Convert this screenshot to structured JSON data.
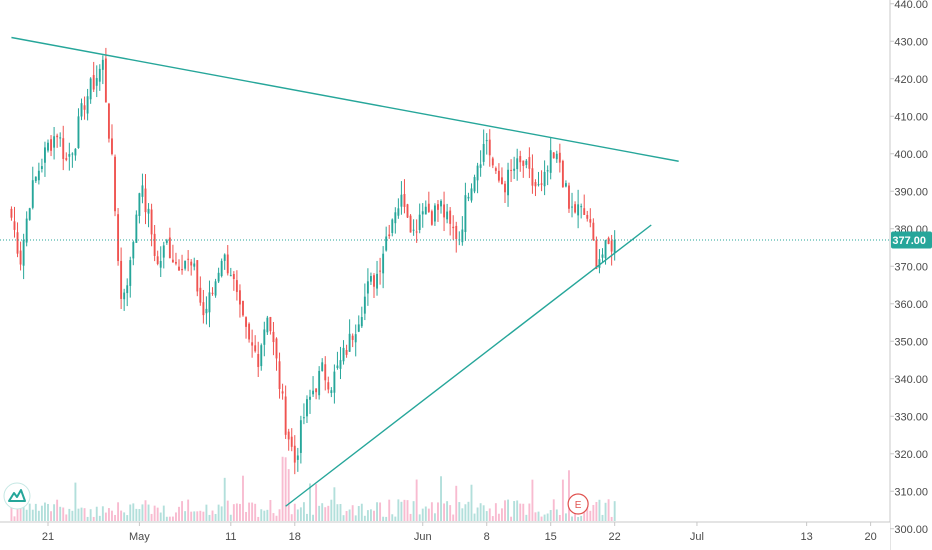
{
  "chart_data": {
    "type": "candlestick",
    "y_axis": {
      "min": 300,
      "max": 441,
      "ticks": [
        {
          "value": 440,
          "label": "440.00"
        },
        {
          "value": 430,
          "label": "430.00"
        },
        {
          "value": 420,
          "label": "420.00"
        },
        {
          "value": 410,
          "label": "410.00"
        },
        {
          "value": 400,
          "label": "400.00"
        },
        {
          "value": 390,
          "label": "390.00"
        },
        {
          "value": 380,
          "label": "380.00"
        },
        {
          "value": 370,
          "label": "370.00"
        },
        {
          "value": 360,
          "label": "360.00"
        },
        {
          "value": 350,
          "label": "350.00"
        },
        {
          "value": 340,
          "label": "340.00"
        },
        {
          "value": 330,
          "label": "330.00"
        },
        {
          "value": 320,
          "label": "320.00"
        },
        {
          "value": 310,
          "label": "310.00"
        },
        {
          "value": 300,
          "label": "300.00"
        }
      ]
    },
    "x_axis": {
      "ticks": [
        {
          "day": 0,
          "label": "21"
        },
        {
          "day": 10,
          "label": "May"
        },
        {
          "day": 20,
          "label": "11"
        },
        {
          "day": 27,
          "label": "18"
        },
        {
          "day": 41,
          "label": "Jun"
        },
        {
          "day": 48,
          "label": "8"
        },
        {
          "day": 55,
          "label": "15"
        },
        {
          "day": 62,
          "label": "22"
        },
        {
          "day": 71,
          "label": "Jul"
        },
        {
          "day": 83,
          "label": "13"
        },
        {
          "day": 90,
          "label": "20"
        }
      ]
    },
    "last_price": {
      "value": 377,
      "label": "377.00"
    },
    "path_points": [
      [
        -4,
        383
      ],
      [
        -3,
        372
      ],
      [
        -2,
        388
      ],
      [
        -1,
        396
      ],
      [
        0,
        402
      ],
      [
        1,
        406
      ],
      [
        2,
        398
      ],
      [
        3,
        404
      ],
      [
        4,
        414
      ],
      [
        5,
        419
      ],
      [
        6,
        424
      ],
      [
        7,
        397
      ],
      [
        8,
        361
      ],
      [
        9,
        370
      ],
      [
        10,
        392
      ],
      [
        11,
        383
      ],
      [
        12,
        370
      ],
      [
        13,
        376
      ],
      [
        14,
        371
      ],
      [
        15,
        372
      ],
      [
        16,
        368
      ],
      [
        17,
        357
      ],
      [
        18,
        363
      ],
      [
        19,
        373
      ],
      [
        20,
        369
      ],
      [
        21,
        357
      ],
      [
        22,
        349
      ],
      [
        23,
        346
      ],
      [
        24,
        358
      ],
      [
        25,
        344
      ],
      [
        26,
        328
      ],
      [
        27,
        318
      ],
      [
        28,
        330
      ],
      [
        29,
        337
      ],
      [
        30,
        342
      ],
      [
        31,
        339
      ],
      [
        32,
        344
      ],
      [
        33,
        350
      ],
      [
        34,
        357
      ],
      [
        35,
        364
      ],
      [
        36,
        368
      ],
      [
        37,
        378
      ],
      [
        38,
        386
      ],
      [
        39,
        388
      ],
      [
        40,
        379
      ],
      [
        41,
        387
      ],
      [
        42,
        384
      ],
      [
        43,
        386
      ],
      [
        44,
        380
      ],
      [
        45,
        378
      ],
      [
        46,
        391
      ],
      [
        47,
        398
      ],
      [
        48,
        404
      ],
      [
        49,
        393
      ],
      [
        50,
        392
      ],
      [
        51,
        396
      ],
      [
        52,
        397
      ],
      [
        53,
        392
      ],
      [
        54,
        390
      ],
      [
        55,
        398
      ],
      [
        56,
        398
      ],
      [
        57,
        385
      ],
      [
        58,
        385
      ],
      [
        59,
        383
      ],
      [
        60,
        372
      ],
      [
        61,
        374
      ],
      [
        62,
        377
      ]
    ],
    "trendlines": [
      {
        "name": "resistance",
        "from": [
          -4,
          431
        ],
        "to": [
          69,
          398
        ],
        "color": "#26a69a"
      },
      {
        "name": "support",
        "from": [
          26,
          306
        ],
        "to": [
          66,
          381
        ],
        "color": "#26a69a"
      }
    ],
    "colors": {
      "up": "#26a69a",
      "down": "#ef5350",
      "up_volume": "#b2dfdb",
      "down_volume": "#f8bbd0",
      "axis_text": "#4a4a4a",
      "price_tag": "#26a69a"
    },
    "earnings_marker": {
      "day": 58,
      "label": "E"
    },
    "grid": false
  }
}
